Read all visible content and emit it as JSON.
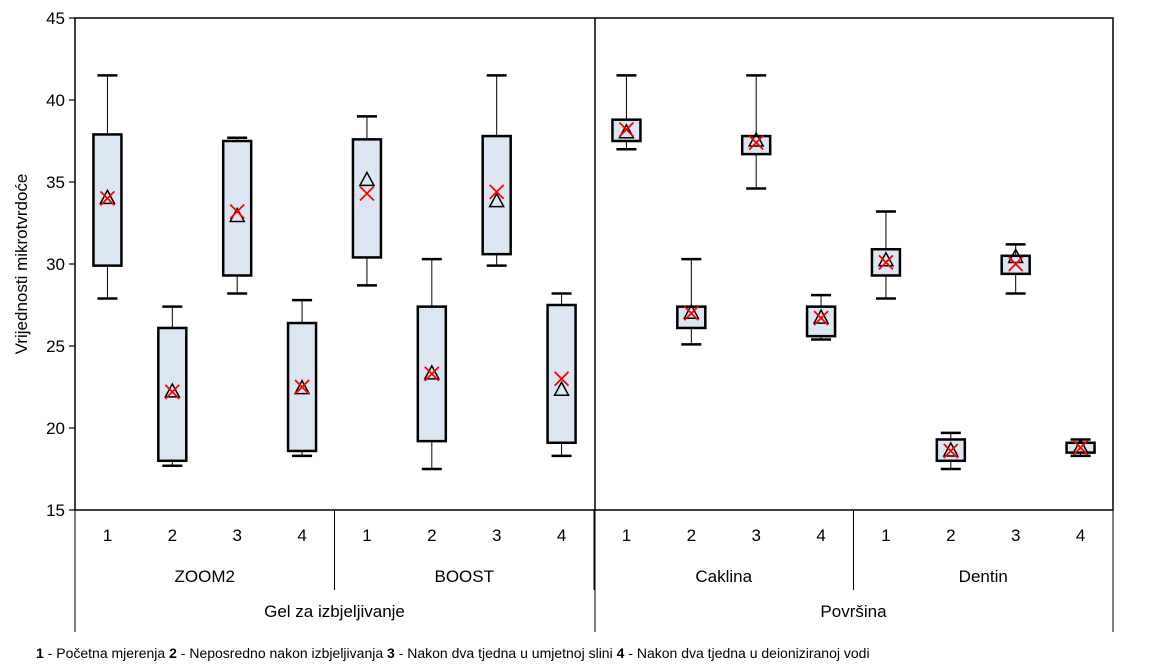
{
  "chart_data": {
    "type": "box",
    "ylabel": "Vrijednosti mikrotvrdoće",
    "ylim": [
      15,
      45
    ],
    "yticks": [
      15,
      20,
      25,
      30,
      35,
      40,
      45
    ],
    "grid": false,
    "panels": [
      {
        "label": "Gel za izbjeljivanje",
        "groups": [
          {
            "label": "ZOOM2",
            "boxes": [
              {
                "x": "1",
                "min": 27.9,
                "q1": 29.9,
                "q3": 37.9,
                "max": 41.5,
                "median": 34.0,
                "mean": 34.0
              },
              {
                "x": "2",
                "min": 17.7,
                "q1": 18.0,
                "q3": 26.1,
                "max": 27.4,
                "median": 22.2,
                "mean": 22.2
              },
              {
                "x": "3",
                "min": 28.2,
                "q1": 29.3,
                "q3": 37.5,
                "max": 37.7,
                "median": 32.9,
                "mean": 33.2
              },
              {
                "x": "4",
                "min": 18.3,
                "q1": 18.6,
                "q3": 26.4,
                "max": 27.8,
                "median": 22.4,
                "mean": 22.5
              }
            ]
          },
          {
            "label": "BOOST",
            "boxes": [
              {
                "x": "1",
                "min": 28.7,
                "q1": 30.4,
                "q3": 37.6,
                "max": 39.0,
                "median": 35.1,
                "mean": 34.3
              },
              {
                "x": "2",
                "min": 17.5,
                "q1": 19.2,
                "q3": 27.4,
                "max": 30.3,
                "median": 23.3,
                "mean": 23.3
              },
              {
                "x": "3",
                "min": 29.9,
                "q1": 30.6,
                "q3": 37.8,
                "max": 41.5,
                "median": 33.8,
                "mean": 34.4
              },
              {
                "x": "4",
                "min": 18.3,
                "q1": 19.1,
                "q3": 27.5,
                "max": 28.2,
                "median": 22.3,
                "mean": 23.0
              }
            ]
          }
        ]
      },
      {
        "label": "Površina",
        "groups": [
          {
            "label": "Caklina",
            "boxes": [
              {
                "x": "1",
                "min": 37.0,
                "q1": 37.5,
                "q3": 38.8,
                "max": 41.5,
                "median": 38.0,
                "mean": 38.2
              },
              {
                "x": "2",
                "min": 25.1,
                "q1": 26.1,
                "q3": 27.4,
                "max": 30.3,
                "median": 27.0,
                "mean": 27.0
              },
              {
                "x": "3",
                "min": 34.6,
                "q1": 36.7,
                "q3": 37.8,
                "max": 41.5,
                "median": 37.5,
                "mean": 37.4
              },
              {
                "x": "4",
                "min": 25.4,
                "q1": 25.6,
                "q3": 27.4,
                "max": 28.1,
                "median": 26.7,
                "mean": 26.7
              }
            ]
          },
          {
            "label": "Dentin",
            "boxes": [
              {
                "x": "1",
                "min": 27.9,
                "q1": 29.3,
                "q3": 30.9,
                "max": 33.2,
                "median": 30.2,
                "mean": 30.1
              },
              {
                "x": "2",
                "min": 17.5,
                "q1": 18.0,
                "q3": 19.3,
                "max": 19.7,
                "median": 18.6,
                "mean": 18.6
              },
              {
                "x": "3",
                "min": 28.2,
                "q1": 29.4,
                "q3": 30.5,
                "max": 31.2,
                "median": 30.4,
                "mean": 30.0
              },
              {
                "x": "4",
                "min": 18.3,
                "q1": 18.5,
                "q3": 19.1,
                "max": 19.3,
                "median": 18.8,
                "mean": 18.8
              }
            ]
          }
        ]
      }
    ],
    "markers": {
      "median": "triangle",
      "mean": "x"
    },
    "colors": {
      "box_fill": "#dce6f2",
      "mean_marker": "#ff0000",
      "median_marker": "#000000"
    },
    "footnote": [
      {
        "num": "1",
        "text": " - Početna mjerenja "
      },
      {
        "num": "2",
        "text": " - Neposredno nakon izbjeljivanja "
      },
      {
        "num": "3",
        "text": " - Nakon dva tjedna u umjetnoj slini "
      },
      {
        "num": "4",
        "text": " - Nakon dva tjedna u deioniziranoj vodi"
      }
    ]
  }
}
